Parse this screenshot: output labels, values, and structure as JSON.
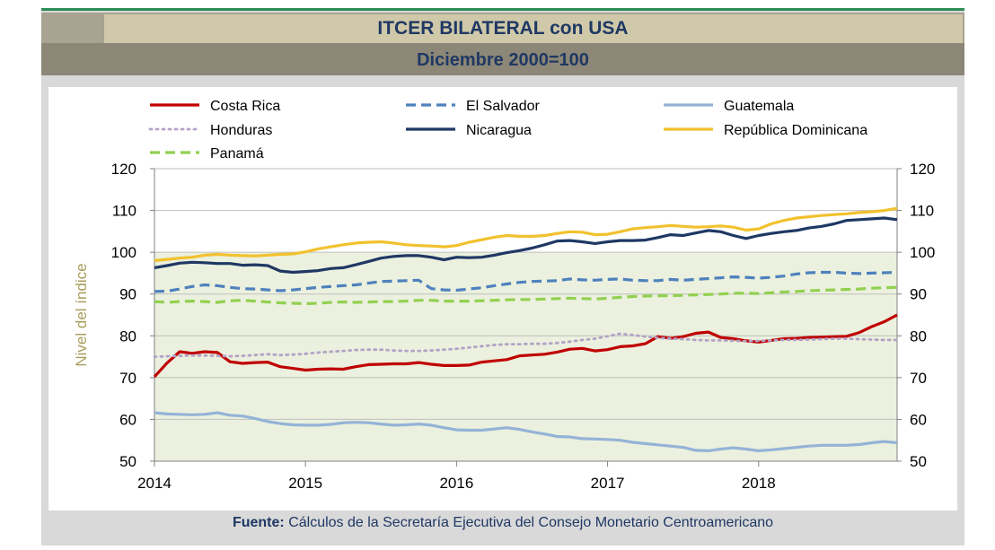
{
  "header": {
    "title": "ITCER BILATERAL con USA",
    "subtitle": "Diciembre 2000=100"
  },
  "footer": {
    "source_label": "Fuente:",
    "source_text": "Cálculos de la Secretaría Ejecutiva del Consejo Monetario Centroamericano"
  },
  "colors": {
    "title_text": "#1f3864",
    "plot_bg": "#ebf1de",
    "axis_label": "#a89c5a"
  },
  "chart_data": {
    "type": "line",
    "title": "ITCER BILATERAL con USA",
    "subtitle": "Diciembre 2000=100",
    "xlabel": "",
    "ylabel": "Nivel del índice",
    "x_ticks": [
      "2014",
      "2015",
      "2016",
      "2017",
      "2018"
    ],
    "y_ticks": [
      50,
      60,
      70,
      80,
      90,
      100,
      110,
      120
    ],
    "ylim": [
      50,
      120
    ],
    "xlim": [
      2014.0,
      2018.917
    ],
    "secondary_y_axis": true,
    "grid": "horizontal",
    "shaded_range": [
      50,
      100
    ],
    "legend_position": "top",
    "series": [
      {
        "name": "Costa Rica",
        "color": "#c00000",
        "style": "solid",
        "x": [
          2014.0,
          2014.083,
          2014.167,
          2014.25,
          2014.333,
          2014.417,
          2014.5,
          2014.583,
          2014.667,
          2014.75,
          2014.833,
          2014.917,
          2015.0,
          2015.083,
          2015.167,
          2015.25,
          2015.333,
          2015.417,
          2015.5,
          2015.583,
          2015.667,
          2015.75,
          2015.833,
          2015.917,
          2016.0,
          2016.083,
          2016.167,
          2016.25,
          2016.333,
          2016.417,
          2016.5,
          2016.583,
          2016.667,
          2016.75,
          2016.833,
          2016.917,
          2017.0,
          2017.083,
          2017.167,
          2017.25,
          2017.333,
          2017.417,
          2017.5,
          2017.583,
          2017.667,
          2017.75,
          2017.833,
          2017.917,
          2018.0,
          2018.083,
          2018.167,
          2018.25,
          2018.333,
          2018.417,
          2018.5,
          2018.583,
          2018.667,
          2018.75,
          2018.833,
          2018.917
        ],
        "y": [
          70.2,
          73.5,
          76.2,
          75.8,
          76.2,
          76.0,
          73.8,
          73.4,
          73.6,
          73.7,
          72.6,
          72.2,
          71.8,
          72.0,
          72.1,
          72.0,
          72.6,
          73.1,
          73.2,
          73.3,
          73.3,
          73.6,
          73.2,
          72.9,
          72.9,
          73.0,
          73.7,
          74.0,
          74.3,
          75.2,
          75.4,
          75.6,
          76.1,
          76.8,
          77.0,
          76.4,
          76.7,
          77.4,
          77.6,
          78.1,
          79.8,
          79.4,
          79.8,
          80.6,
          80.9,
          79.6,
          79.3,
          78.8,
          78.5,
          78.9,
          79.3,
          79.4,
          79.6,
          79.7,
          79.8,
          79.9,
          80.8,
          82.2,
          83.4,
          85.0
        ]
      },
      {
        "name": "El Salvador",
        "color": "#4f81bd",
        "style": "dashed",
        "x": [
          2014.0,
          2014.083,
          2014.167,
          2014.25,
          2014.333,
          2014.417,
          2014.5,
          2014.583,
          2014.667,
          2014.75,
          2014.833,
          2014.917,
          2015.0,
          2015.083,
          2015.167,
          2015.25,
          2015.333,
          2015.417,
          2015.5,
          2015.583,
          2015.667,
          2015.75,
          2015.833,
          2015.917,
          2016.0,
          2016.083,
          2016.167,
          2016.25,
          2016.333,
          2016.417,
          2016.5,
          2016.583,
          2016.667,
          2016.75,
          2016.833,
          2016.917,
          2017.0,
          2017.083,
          2017.167,
          2017.25,
          2017.333,
          2017.417,
          2017.5,
          2017.583,
          2017.667,
          2017.75,
          2017.833,
          2017.917,
          2018.0,
          2018.083,
          2018.167,
          2018.25,
          2018.333,
          2018.417,
          2018.5,
          2018.583,
          2018.667,
          2018.75,
          2018.833,
          2018.917
        ],
        "y": [
          90.6,
          90.7,
          91.2,
          91.8,
          92.2,
          92.0,
          91.6,
          91.3,
          91.2,
          91.0,
          90.8,
          91.0,
          91.3,
          91.6,
          91.8,
          92.0,
          92.2,
          92.6,
          93.0,
          93.1,
          93.2,
          93.3,
          91.3,
          91.0,
          90.9,
          91.2,
          91.5,
          92.0,
          92.4,
          92.8,
          93.0,
          93.1,
          93.2,
          93.6,
          93.4,
          93.3,
          93.5,
          93.6,
          93.3,
          93.2,
          93.2,
          93.5,
          93.3,
          93.5,
          93.7,
          93.9,
          94.1,
          94.0,
          93.8,
          94.0,
          94.3,
          94.8,
          95.1,
          95.2,
          95.2,
          95.0,
          94.9,
          95.0,
          95.1,
          95.2
        ]
      },
      {
        "name": "Guatemala",
        "color": "#95b3d7",
        "style": "solid",
        "x": [
          2014.0,
          2014.083,
          2014.167,
          2014.25,
          2014.333,
          2014.417,
          2014.5,
          2014.583,
          2014.667,
          2014.75,
          2014.833,
          2014.917,
          2015.0,
          2015.083,
          2015.167,
          2015.25,
          2015.333,
          2015.417,
          2015.5,
          2015.583,
          2015.667,
          2015.75,
          2015.833,
          2015.917,
          2016.0,
          2016.083,
          2016.167,
          2016.25,
          2016.333,
          2016.417,
          2016.5,
          2016.583,
          2016.667,
          2016.75,
          2016.833,
          2016.917,
          2017.0,
          2017.083,
          2017.167,
          2017.25,
          2017.333,
          2017.417,
          2017.5,
          2017.583,
          2017.667,
          2017.75,
          2017.833,
          2017.917,
          2018.0,
          2018.083,
          2018.167,
          2018.25,
          2018.333,
          2018.417,
          2018.5,
          2018.583,
          2018.667,
          2018.75,
          2018.833,
          2018.917
        ],
        "y": [
          61.6,
          61.3,
          61.2,
          61.1,
          61.2,
          61.6,
          61.0,
          60.8,
          60.2,
          59.5,
          59.0,
          58.7,
          58.6,
          58.6,
          58.8,
          59.2,
          59.3,
          59.2,
          58.9,
          58.6,
          58.7,
          58.9,
          58.6,
          58.0,
          57.5,
          57.4,
          57.4,
          57.7,
          58.0,
          57.6,
          57.0,
          56.5,
          55.9,
          55.8,
          55.4,
          55.3,
          55.2,
          55.0,
          54.5,
          54.2,
          53.9,
          53.6,
          53.3,
          52.6,
          52.5,
          52.9,
          53.2,
          52.9,
          52.5,
          52.7,
          53.0,
          53.3,
          53.6,
          53.8,
          53.8,
          53.8,
          54.0,
          54.4,
          54.7,
          54.4
        ]
      },
      {
        "name": "Honduras",
        "color": "#b3a2c7",
        "style": "dotted",
        "x": [
          2014.0,
          2014.083,
          2014.167,
          2014.25,
          2014.333,
          2014.417,
          2014.5,
          2014.583,
          2014.667,
          2014.75,
          2014.833,
          2014.917,
          2015.0,
          2015.083,
          2015.167,
          2015.25,
          2015.333,
          2015.417,
          2015.5,
          2015.583,
          2015.667,
          2015.75,
          2015.833,
          2015.917,
          2016.0,
          2016.083,
          2016.167,
          2016.25,
          2016.333,
          2016.417,
          2016.5,
          2016.583,
          2016.667,
          2016.75,
          2016.833,
          2016.917,
          2017.0,
          2017.083,
          2017.167,
          2017.25,
          2017.333,
          2017.417,
          2017.5,
          2017.583,
          2017.667,
          2017.75,
          2017.833,
          2017.917,
          2018.0,
          2018.083,
          2018.167,
          2018.25,
          2018.333,
          2018.417,
          2018.5,
          2018.583,
          2018.667,
          2018.75,
          2018.833,
          2018.917
        ],
        "y": [
          75.0,
          75.1,
          75.2,
          75.3,
          75.3,
          75.2,
          75.1,
          75.2,
          75.4,
          75.6,
          75.4,
          75.5,
          75.7,
          76.0,
          76.2,
          76.4,
          76.6,
          76.7,
          76.7,
          76.5,
          76.4,
          76.4,
          76.5,
          76.7,
          76.9,
          77.2,
          77.5,
          77.8,
          78.0,
          78.0,
          78.1,
          78.1,
          78.3,
          78.6,
          79.0,
          79.3,
          79.9,
          80.5,
          80.2,
          79.8,
          79.5,
          79.3,
          79.2,
          79.0,
          78.9,
          78.9,
          78.8,
          78.7,
          78.8,
          78.9,
          79.0,
          79.0,
          79.1,
          79.2,
          79.3,
          79.3,
          79.2,
          79.1,
          79.0,
          79.0
        ]
      },
      {
        "name": "Nicaragua",
        "color": "#1f3864",
        "style": "solid",
        "x": [
          2014.0,
          2014.083,
          2014.167,
          2014.25,
          2014.333,
          2014.417,
          2014.5,
          2014.583,
          2014.667,
          2014.75,
          2014.833,
          2014.917,
          2015.0,
          2015.083,
          2015.167,
          2015.25,
          2015.333,
          2015.417,
          2015.5,
          2015.583,
          2015.667,
          2015.75,
          2015.833,
          2015.917,
          2016.0,
          2016.083,
          2016.167,
          2016.25,
          2016.333,
          2016.417,
          2016.5,
          2016.583,
          2016.667,
          2016.75,
          2016.833,
          2016.917,
          2017.0,
          2017.083,
          2017.167,
          2017.25,
          2017.333,
          2017.417,
          2017.5,
          2017.583,
          2017.667,
          2017.75,
          2017.833,
          2017.917,
          2018.0,
          2018.083,
          2018.167,
          2018.25,
          2018.333,
          2018.417,
          2018.5,
          2018.583,
          2018.667,
          2018.75,
          2018.833,
          2018.917
        ],
        "y": [
          96.3,
          96.8,
          97.4,
          97.6,
          97.5,
          97.3,
          97.3,
          96.9,
          97.0,
          96.8,
          95.5,
          95.2,
          95.4,
          95.6,
          96.1,
          96.3,
          97.0,
          97.8,
          98.6,
          99.0,
          99.2,
          99.2,
          98.8,
          98.2,
          98.8,
          98.7,
          98.8,
          99.3,
          99.9,
          100.4,
          101.0,
          101.8,
          102.7,
          102.8,
          102.5,
          102.1,
          102.5,
          102.8,
          102.8,
          102.9,
          103.5,
          104.2,
          104.0,
          104.6,
          105.2,
          104.9,
          104.0,
          103.3,
          104.0,
          104.5,
          104.9,
          105.2,
          105.8,
          106.2,
          106.8,
          107.6,
          107.8,
          108.0,
          108.2,
          107.8
        ]
      },
      {
        "name": "República Dominicana",
        "color": "#f2c12e",
        "style": "solid",
        "x": [
          2014.0,
          2014.083,
          2014.167,
          2014.25,
          2014.333,
          2014.417,
          2014.5,
          2014.583,
          2014.667,
          2014.75,
          2014.833,
          2014.917,
          2015.0,
          2015.083,
          2015.167,
          2015.25,
          2015.333,
          2015.417,
          2015.5,
          2015.583,
          2015.667,
          2015.75,
          2015.833,
          2015.917,
          2016.0,
          2016.083,
          2016.167,
          2016.25,
          2016.333,
          2016.417,
          2016.5,
          2016.583,
          2016.667,
          2016.75,
          2016.833,
          2016.917,
          2017.0,
          2017.083,
          2017.167,
          2017.25,
          2017.333,
          2017.417,
          2017.5,
          2017.583,
          2017.667,
          2017.75,
          2017.833,
          2017.917,
          2018.0,
          2018.083,
          2018.167,
          2018.25,
          2018.333,
          2018.417,
          2018.5,
          2018.583,
          2018.667,
          2018.75,
          2018.833,
          2018.917
        ],
        "y": [
          98.0,
          98.3,
          98.6,
          98.8,
          99.3,
          99.5,
          99.3,
          99.2,
          99.1,
          99.3,
          99.5,
          99.6,
          100.1,
          100.8,
          101.3,
          101.8,
          102.2,
          102.4,
          102.5,
          102.2,
          101.8,
          101.6,
          101.5,
          101.3,
          101.6,
          102.4,
          103.0,
          103.6,
          104.0,
          103.8,
          103.8,
          104.0,
          104.5,
          104.9,
          104.8,
          104.2,
          104.3,
          104.9,
          105.6,
          105.9,
          106.1,
          106.4,
          106.2,
          106.0,
          106.1,
          106.3,
          106.0,
          105.3,
          105.6,
          106.8,
          107.6,
          108.2,
          108.5,
          108.8,
          109.0,
          109.2,
          109.5,
          109.7,
          110.0,
          110.5
        ]
      },
      {
        "name": "Panamá",
        "color": "#92d050",
        "style": "dashed",
        "x": [
          2014.0,
          2014.083,
          2014.167,
          2014.25,
          2014.333,
          2014.417,
          2014.5,
          2014.583,
          2014.667,
          2014.75,
          2014.833,
          2014.917,
          2015.0,
          2015.083,
          2015.167,
          2015.25,
          2015.333,
          2015.417,
          2015.5,
          2015.583,
          2015.667,
          2015.75,
          2015.833,
          2015.917,
          2016.0,
          2016.083,
          2016.167,
          2016.25,
          2016.333,
          2016.417,
          2016.5,
          2016.583,
          2016.667,
          2016.75,
          2016.833,
          2016.917,
          2017.0,
          2017.083,
          2017.167,
          2017.25,
          2017.333,
          2017.417,
          2017.5,
          2017.583,
          2017.667,
          2017.75,
          2017.833,
          2017.917,
          2018.0,
          2018.083,
          2018.167,
          2018.25,
          2018.333,
          2018.417,
          2018.5,
          2018.583,
          2018.667,
          2018.75,
          2018.833,
          2018.917
        ],
        "y": [
          88.2,
          88.0,
          88.2,
          88.3,
          88.2,
          88.0,
          88.4,
          88.5,
          88.3,
          88.1,
          87.9,
          87.8,
          87.7,
          87.8,
          88.0,
          88.1,
          88.0,
          88.1,
          88.2,
          88.2,
          88.3,
          88.5,
          88.5,
          88.3,
          88.3,
          88.3,
          88.4,
          88.5,
          88.6,
          88.7,
          88.7,
          88.8,
          88.9,
          89.0,
          88.9,
          88.8,
          89.0,
          89.2,
          89.4,
          89.5,
          89.6,
          89.6,
          89.7,
          89.8,
          89.9,
          90.0,
          90.2,
          90.2,
          90.1,
          90.3,
          90.5,
          90.6,
          90.8,
          90.9,
          91.0,
          91.1,
          91.2,
          91.4,
          91.5,
          91.6
        ]
      }
    ]
  }
}
